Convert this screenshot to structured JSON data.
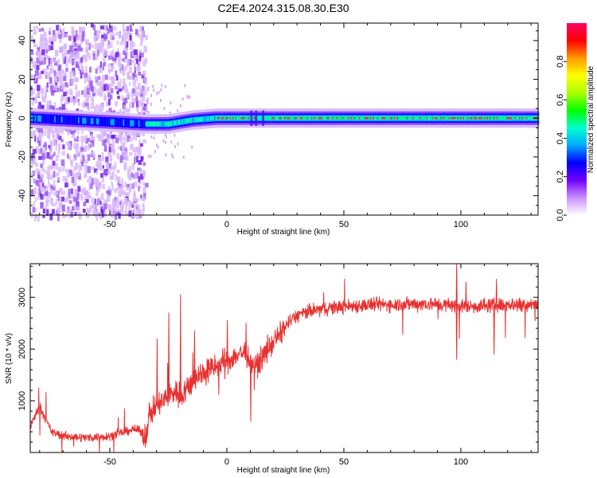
{
  "title": "C2E4.2024.315.08.30.E30",
  "chart_data": [
    {
      "type": "heatmap",
      "xlabel": "Height of straight line (km)",
      "ylabel": "Frequency (Hz)",
      "xlim": [
        -84,
        133
      ],
      "ylim": [
        -50,
        49
      ],
      "xticks": [
        -50,
        0,
        50,
        100
      ],
      "yticks": [
        -40,
        -20,
        0,
        20,
        40
      ],
      "colorbar": {
        "label": "Normalized spectral amplitude",
        "range": [
          0.0,
          1.0
        ],
        "ticks": [
          "0.0",
          "0.2",
          "0.4",
          "0.6",
          "0.8"
        ],
        "colors": [
          "#ffffff",
          "#c890ff",
          "#7000ff",
          "#0000ff",
          "#00aaff",
          "#00ffcc",
          "#00ff00",
          "#aaff00",
          "#ffff00",
          "#ff9900",
          "#ff0000",
          "#ff0066"
        ]
      },
      "ridge": {
        "description_values": [
          {
            "x": -84,
            "y": 0
          },
          {
            "x": -50,
            "y": -2
          },
          {
            "x": -35,
            "y": -3
          },
          {
            "x": -25,
            "y": -3
          },
          {
            "x": -15,
            "y": -1
          },
          {
            "x": -5,
            "y": 0
          },
          {
            "x": 0,
            "y": 0
          },
          {
            "x": 133,
            "y": 0
          }
        ]
      },
      "noise_region_x": [
        -84,
        -35
      ]
    },
    {
      "type": "line",
      "xlabel": "Height of straight line (km)",
      "ylabel": "SNR (10 * v/v)",
      "xlim": [
        -84,
        133
      ],
      "ylim": [
        0,
        3650
      ],
      "xticks": [
        -50,
        0,
        50,
        100
      ],
      "yticks": [
        1000,
        2000,
        3000
      ],
      "series": [
        {
          "color": "#e83030",
          "points": [
            [
              -84,
              500
            ],
            [
              -80,
              900
            ],
            [
              -75,
              400
            ],
            [
              -70,
              320
            ],
            [
              -65,
              300
            ],
            [
              -60,
              290
            ],
            [
              -55,
              300
            ],
            [
              -50,
              320
            ],
            [
              -45,
              380
            ],
            [
              -40,
              450
            ],
            [
              -37,
              420
            ],
            [
              -35,
              300
            ],
            [
              -33,
              750
            ],
            [
              -30,
              900
            ],
            [
              -27,
              1000
            ],
            [
              -25,
              1100
            ],
            [
              -22,
              1200
            ],
            [
              -20,
              1100
            ],
            [
              -17,
              1250
            ],
            [
              -15,
              1350
            ],
            [
              -12,
              1500
            ],
            [
              -10,
              1550
            ],
            [
              -7,
              1600
            ],
            [
              -5,
              1650
            ],
            [
              -2,
              1700
            ],
            [
              0,
              1750
            ],
            [
              3,
              1850
            ],
            [
              5,
              1900
            ],
            [
              8,
              1950
            ],
            [
              10,
              1700
            ],
            [
              12,
              1650
            ],
            [
              15,
              1850
            ],
            [
              18,
              2000
            ],
            [
              20,
              2150
            ],
            [
              23,
              2300
            ],
            [
              25,
              2450
            ],
            [
              28,
              2580
            ],
            [
              30,
              2650
            ],
            [
              35,
              2720
            ],
            [
              40,
              2770
            ],
            [
              45,
              2800
            ],
            [
              50,
              2820
            ],
            [
              55,
              2840
            ],
            [
              60,
              2850
            ],
            [
              65,
              2860
            ],
            [
              70,
              2860
            ],
            [
              75,
              2870
            ],
            [
              80,
              2870
            ],
            [
              85,
              2880
            ],
            [
              90,
              2860
            ],
            [
              95,
              2850
            ],
            [
              100,
              2830
            ],
            [
              105,
              2830
            ],
            [
              110,
              2840
            ],
            [
              115,
              2850
            ],
            [
              120,
              2860
            ],
            [
              125,
              2870
            ],
            [
              133,
              2880
            ]
          ]
        }
      ]
    }
  ]
}
